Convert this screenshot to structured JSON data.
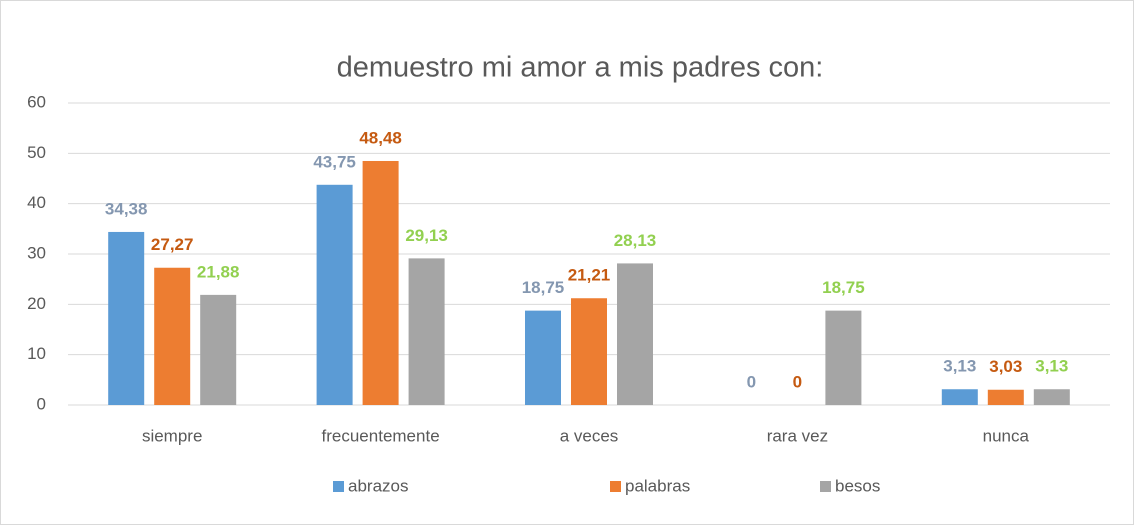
{
  "chart_data": {
    "type": "bar",
    "title": "demuestro mi amor a mis padres con:",
    "categories": [
      "siempre",
      "frecuentemente",
      "a veces",
      "rara vez",
      "nunca"
    ],
    "series": [
      {
        "name": "abrazos",
        "color": "#5b9bd5",
        "label_color": "#8497b0",
        "values": [
          34.38,
          43.75,
          18.75,
          0,
          3.13
        ],
        "value_labels": [
          "34,38",
          "43,75",
          "18,75",
          "0",
          "3,13"
        ]
      },
      {
        "name": "palabras",
        "color": "#ed7d31",
        "label_color": "#c55a11",
        "values": [
          27.27,
          48.48,
          21.21,
          0,
          3.03
        ],
        "value_labels": [
          "27,27",
          "48,48",
          "21,21",
          "0",
          "3,03"
        ]
      },
      {
        "name": "besos",
        "color": "#a5a5a5",
        "label_color": "#92d050",
        "values": [
          21.88,
          29.13,
          28.13,
          18.75,
          3.13
        ],
        "value_labels": [
          "21,88",
          "29,13",
          "28,13",
          "18,75",
          "3,13"
        ]
      }
    ],
    "ylim": [
      0,
      60
    ],
    "yticks": [
      0,
      10,
      20,
      30,
      40,
      50,
      60
    ],
    "grid": true,
    "legend": "bottom"
  }
}
